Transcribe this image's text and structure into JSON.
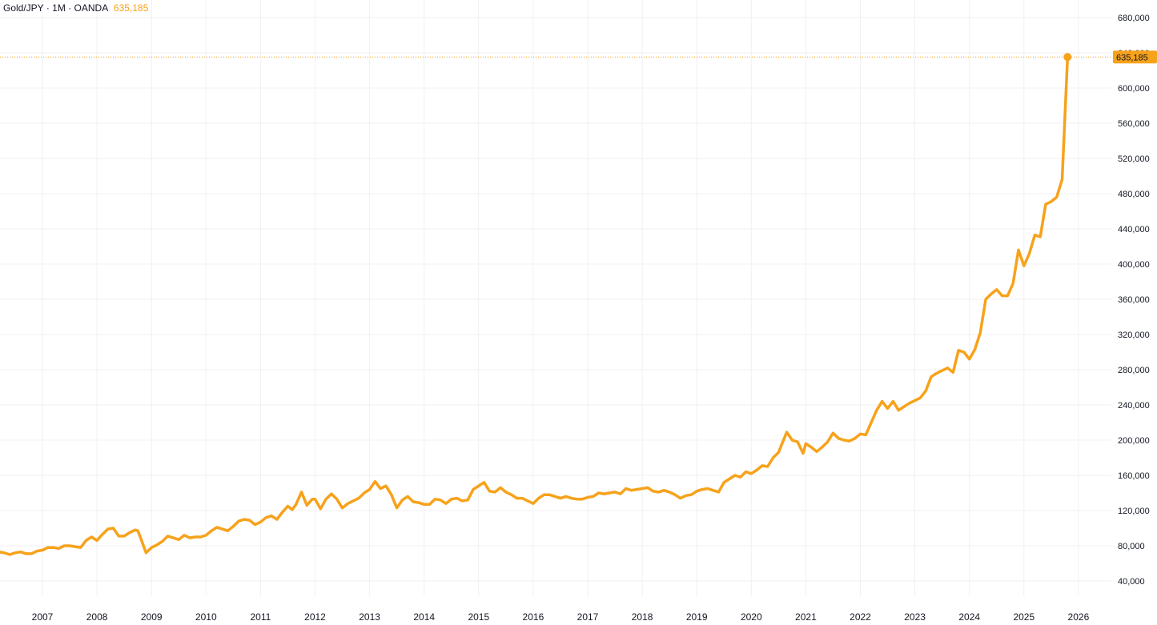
{
  "header": {
    "symbol": "Gold/JPY",
    "sep1": "·",
    "interval": "1M",
    "sep2": "·",
    "source": "OANDA",
    "last_price": "635,185"
  },
  "colors": {
    "series": "#f7a21b",
    "grid": "#f0f1f4",
    "text": "#131722",
    "background": "#ffffff"
  },
  "chart_data": {
    "type": "line",
    "grid": true,
    "y_axis_side": "right",
    "ylim": [
      25000,
      690000
    ],
    "y_ticks": [
      {
        "value": 40000,
        "label": "40,000"
      },
      {
        "value": 80000,
        "label": "80,000"
      },
      {
        "value": 120000,
        "label": "120,000"
      },
      {
        "value": 160000,
        "label": "160,000"
      },
      {
        "value": 200000,
        "label": "200,000"
      },
      {
        "value": 240000,
        "label": "240,000"
      },
      {
        "value": 280000,
        "label": "280,000"
      },
      {
        "value": 320000,
        "label": "320,000"
      },
      {
        "value": 360000,
        "label": "360,000"
      },
      {
        "value": 400000,
        "label": "400,000"
      },
      {
        "value": 440000,
        "label": "440,000"
      },
      {
        "value": 480000,
        "label": "480,000"
      },
      {
        "value": 520000,
        "label": "520,000"
      },
      {
        "value": 560000,
        "label": "560,000"
      },
      {
        "value": 600000,
        "label": "600,000"
      },
      {
        "value": 640000,
        "label": "640,000"
      },
      {
        "value": 680000,
        "label": "680,000"
      }
    ],
    "x_ticks": [
      "2007",
      "2008",
      "2009",
      "2010",
      "2011",
      "2012",
      "2013",
      "2014",
      "2015",
      "2016",
      "2017",
      "2018",
      "2019",
      "2020",
      "2021",
      "2022",
      "2023",
      "2024",
      "2025",
      "2026"
    ],
    "last_value": 635185,
    "last_label": "635,185",
    "series": [
      {
        "x": [
          2006.2,
          2006.3,
          2006.4,
          2006.5,
          2006.6,
          2006.7,
          2006.8,
          2006.9,
          2007.0,
          2007.1,
          2007.2,
          2007.3,
          2007.4,
          2007.5,
          2007.6,
          2007.7,
          2007.8,
          2007.9,
          2008.0,
          2008.1,
          2008.2,
          2008.3,
          2008.4,
          2008.5,
          2008.6,
          2008.7,
          2008.75,
          2008.8,
          2008.9,
          2009.0,
          2009.1,
          2009.2,
          2009.3,
          2009.4,
          2009.5,
          2009.6,
          2009.7,
          2009.8,
          2009.9,
          2010.0,
          2010.1,
          2010.2,
          2010.3,
          2010.4,
          2010.5,
          2010.6,
          2010.7,
          2010.8,
          2010.9,
          2011.0,
          2011.1,
          2011.2,
          2011.3,
          2011.4,
          2011.5,
          2011.58,
          2011.65,
          2011.75,
          2011.85,
          2011.95,
          2012.0,
          2012.1,
          2012.2,
          2012.3,
          2012.4,
          2012.5,
          2012.6,
          2012.7,
          2012.8,
          2012.9,
          2013.0,
          2013.1,
          2013.2,
          2013.3,
          2013.4,
          2013.5,
          2013.6,
          2013.7,
          2013.8,
          2013.9,
          2014.0,
          2014.1,
          2014.2,
          2014.3,
          2014.4,
          2014.5,
          2014.6,
          2014.7,
          2014.8,
          2014.9,
          2015.0,
          2015.1,
          2015.2,
          2015.3,
          2015.4,
          2015.5,
          2015.6,
          2015.7,
          2015.8,
          2015.9,
          2016.0,
          2016.1,
          2016.2,
          2016.3,
          2016.4,
          2016.5,
          2016.6,
          2016.7,
          2016.8,
          2016.9,
          2017.0,
          2017.1,
          2017.2,
          2017.3,
          2017.4,
          2017.5,
          2017.6,
          2017.7,
          2017.8,
          2017.9,
          2018.0,
          2018.1,
          2018.2,
          2018.3,
          2018.4,
          2018.5,
          2018.6,
          2018.7,
          2018.8,
          2018.9,
          2019.0,
          2019.1,
          2019.2,
          2019.3,
          2019.4,
          2019.5,
          2019.6,
          2019.7,
          2019.8,
          2019.9,
          2020.0,
          2020.1,
          2020.2,
          2020.3,
          2020.4,
          2020.5,
          2020.55,
          2020.65,
          2020.75,
          2020.85,
          2020.95,
          2021.0,
          2021.1,
          2021.2,
          2021.3,
          2021.4,
          2021.5,
          2021.6,
          2021.7,
          2021.8,
          2021.9,
          2022.0,
          2022.1,
          2022.2,
          2022.3,
          2022.4,
          2022.5,
          2022.6,
          2022.7,
          2022.8,
          2022.9,
          2023.0,
          2023.1,
          2023.2,
          2023.3,
          2023.4,
          2023.5,
          2023.6,
          2023.7,
          2023.8,
          2023.9,
          2024.0,
          2024.1,
          2024.2,
          2024.3,
          2024.4,
          2024.5,
          2024.6,
          2024.7,
          2024.8,
          2024.9,
          2025.0,
          2025.1,
          2025.2,
          2025.3,
          2025.4,
          2025.5,
          2025.6,
          2025.7,
          2025.8
        ],
        "y": [
          73000,
          72000,
          70000,
          72000,
          73000,
          71000,
          71000,
          74000,
          75000,
          78000,
          78000,
          77000,
          80000,
          80000,
          79000,
          78000,
          86000,
          90000,
          86000,
          93000,
          99000,
          100000,
          91000,
          91000,
          95000,
          98000,
          97000,
          89000,
          72000,
          78000,
          81000,
          85000,
          91000,
          89000,
          87000,
          92000,
          89000,
          90000,
          90000,
          92000,
          97000,
          101000,
          99000,
          97000,
          102000,
          108000,
          110000,
          109000,
          104000,
          107000,
          112000,
          114000,
          110000,
          118000,
          125000,
          121000,
          127000,
          141000,
          126000,
          133000,
          133000,
          122000,
          133000,
          139000,
          133000,
          123000,
          128000,
          131000,
          134000,
          140000,
          144000,
          153000,
          145000,
          148000,
          138000,
          123000,
          132000,
          136000,
          130000,
          129000,
          127000,
          127000,
          133000,
          132000,
          128000,
          133000,
          134000,
          131000,
          132000,
          144000,
          148000,
          152000,
          142000,
          141000,
          146000,
          141000,
          138000,
          134000,
          134000,
          131000,
          128000,
          134000,
          138000,
          138000,
          136000,
          134000,
          136000,
          134000,
          133000,
          133000,
          135000,
          136000,
          140000,
          139000,
          140000,
          141000,
          139000,
          145000,
          143000,
          144000,
          145000,
          146000,
          142000,
          141000,
          143000,
          141000,
          138000,
          134000,
          137000,
          138000,
          142000,
          144000,
          145000,
          143000,
          141000,
          152000,
          156000,
          160000,
          158000,
          164000,
          162000,
          166000,
          171000,
          170000,
          180000,
          186000,
          194000,
          209000,
          200000,
          198000,
          185000,
          196000,
          192000,
          187000,
          192000,
          198000,
          208000,
          202000,
          200000,
          199000,
          202000,
          207000,
          206000,
          220000,
          234000,
          244000,
          236000,
          244000,
          234000,
          238000,
          242000,
          245000,
          248000,
          256000,
          272000,
          276000,
          279000,
          282000,
          277000,
          302000,
          300000,
          292000,
          303000,
          322000,
          360000,
          366000,
          371000,
          364000,
          364000,
          378000,
          416000,
          398000,
          412000,
          433000,
          431000,
          468000,
          471000,
          476000,
          496000,
          635185
        ]
      }
    ]
  }
}
